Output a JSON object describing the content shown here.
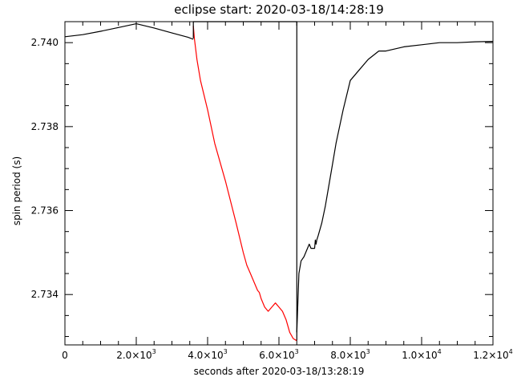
{
  "chart_data": {
    "type": "line",
    "title": "eclipse start: 2020-03-18/14:28:19",
    "xlabel": "seconds after 2020-03-18/13:28:19",
    "ylabel": "spin period (s)",
    "xlim": [
      0,
      12000
    ],
    "ylim": [
      2.7328,
      2.7405
    ],
    "x_ticks": [
      {
        "value": 0,
        "mant": "0",
        "exp": ""
      },
      {
        "value": 2000,
        "mant": "2.0×10",
        "exp": "3"
      },
      {
        "value": 4000,
        "mant": "4.0×10",
        "exp": "3"
      },
      {
        "value": 6000,
        "mant": "6.0×10",
        "exp": "3"
      },
      {
        "value": 8000,
        "mant": "8.0×10",
        "exp": "3"
      },
      {
        "value": 10000,
        "mant": "1.0×10",
        "exp": "4"
      },
      {
        "value": 12000,
        "mant": "1.2×10",
        "exp": "4"
      }
    ],
    "y_ticks": [
      {
        "value": 2.734,
        "label": "2.734"
      },
      {
        "value": 2.736,
        "label": "2.736"
      },
      {
        "value": 2.738,
        "label": "2.738"
      },
      {
        "value": 2.74,
        "label": "2.740"
      }
    ],
    "grid": false,
    "series": [
      {
        "color": "#000000",
        "x": [
          0,
          500,
          1000,
          1500,
          2000,
          2500,
          3000,
          3450,
          3600
        ],
        "y": [
          2.74014,
          2.74019,
          2.74027,
          2.74036,
          2.74045,
          2.74035,
          2.74023,
          2.74013,
          2.74008
        ]
      },
      {
        "color": "#ff0000",
        "x": [
          3600,
          3630,
          3700,
          3800,
          4000,
          4200,
          4500,
          4800,
          5000,
          5100,
          5200,
          5400,
          5450,
          5500,
          5600,
          5700,
          5800,
          5900,
          6000,
          6100,
          6200,
          6300,
          6400,
          6500
        ],
        "y": [
          2.7404,
          2.7401,
          2.7396,
          2.7391,
          2.7384,
          2.7376,
          2.7367,
          2.7357,
          2.735,
          2.7347,
          2.7345,
          2.7341,
          2.73405,
          2.7339,
          2.7337,
          2.7336,
          2.7337,
          2.7338,
          2.7337,
          2.7336,
          2.7334,
          2.7331,
          2.73295,
          2.7329
        ]
      },
      {
        "color": "#000000",
        "x": [
          3600,
          3600,
          6500,
          6500
        ],
        "y": [
          2.7401,
          2.7405,
          2.7405,
          2.7329
        ]
      },
      {
        "color": "#000000",
        "x": [
          6500,
          6560,
          6620,
          6700,
          6800,
          6850,
          6900,
          6950,
          7000,
          7020,
          7040,
          7060,
          7100,
          7200,
          7300,
          7400,
          7500,
          7600,
          7800,
          8000,
          8200,
          8500,
          8800,
          9000,
          9500,
          10000,
          10500,
          11000,
          11500,
          12000
        ],
        "y": [
          2.7331,
          2.7345,
          2.7348,
          2.7349,
          2.7351,
          2.7352,
          2.7351,
          2.7351,
          2.7351,
          2.7353,
          2.7352,
          2.7353,
          2.7354,
          2.7357,
          2.7361,
          2.7366,
          2.7371,
          2.7376,
          2.7384,
          2.7391,
          2.7393,
          2.7396,
          2.7398,
          2.7398,
          2.7399,
          2.73995,
          2.74,
          2.74,
          2.74002,
          2.74003
        ]
      }
    ]
  }
}
